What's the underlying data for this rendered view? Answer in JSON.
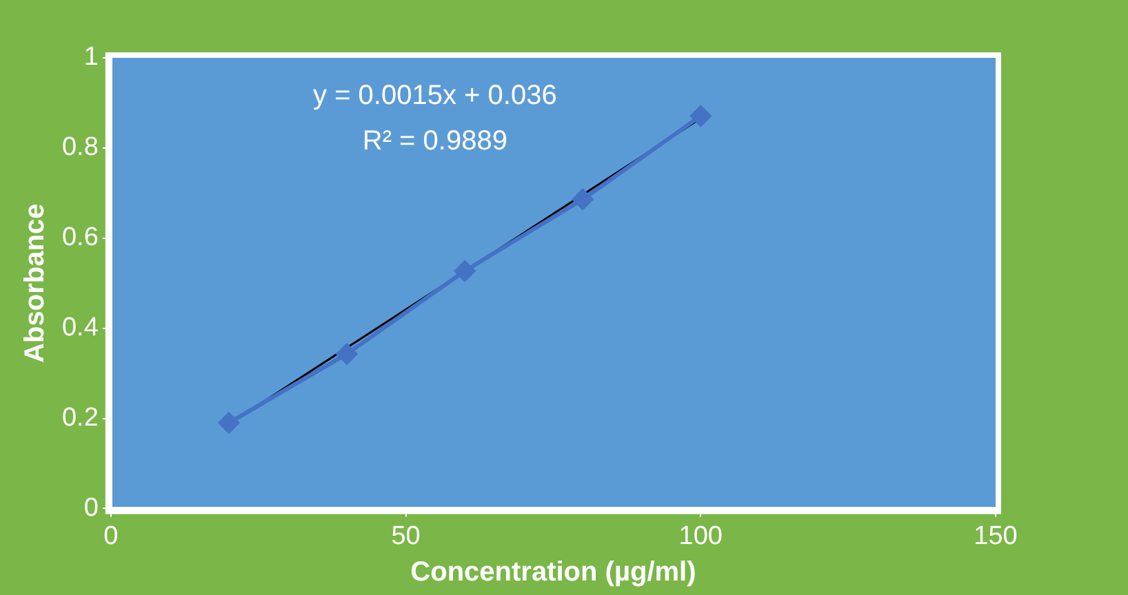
{
  "chart_data": {
    "type": "line",
    "xlabel": "Concentration (µg/ml)",
    "ylabel": "Absorbance",
    "xlim": [
      0,
      150
    ],
    "xticks": [
      0,
      50,
      100,
      150
    ],
    "ylim": [
      0,
      1
    ],
    "yticks": [
      0,
      0.2,
      0.4,
      0.6,
      0.8,
      1
    ],
    "grid": false,
    "legend": false,
    "annotations": [
      "y = 0.0015x + 0.036",
      "R² = 0.9889"
    ],
    "series": [
      {
        "color": "#4472c4",
        "marker": "diamond",
        "x": [
          20,
          40,
          60,
          80,
          100
        ],
        "values": [
          0.19,
          0.343,
          0.527,
          0.686,
          0.871
        ]
      },
      {
        "color": "#000000",
        "marker": "none",
        "x": [
          20,
          100
        ],
        "values": [
          0.187,
          0.866
        ]
      }
    ]
  }
}
